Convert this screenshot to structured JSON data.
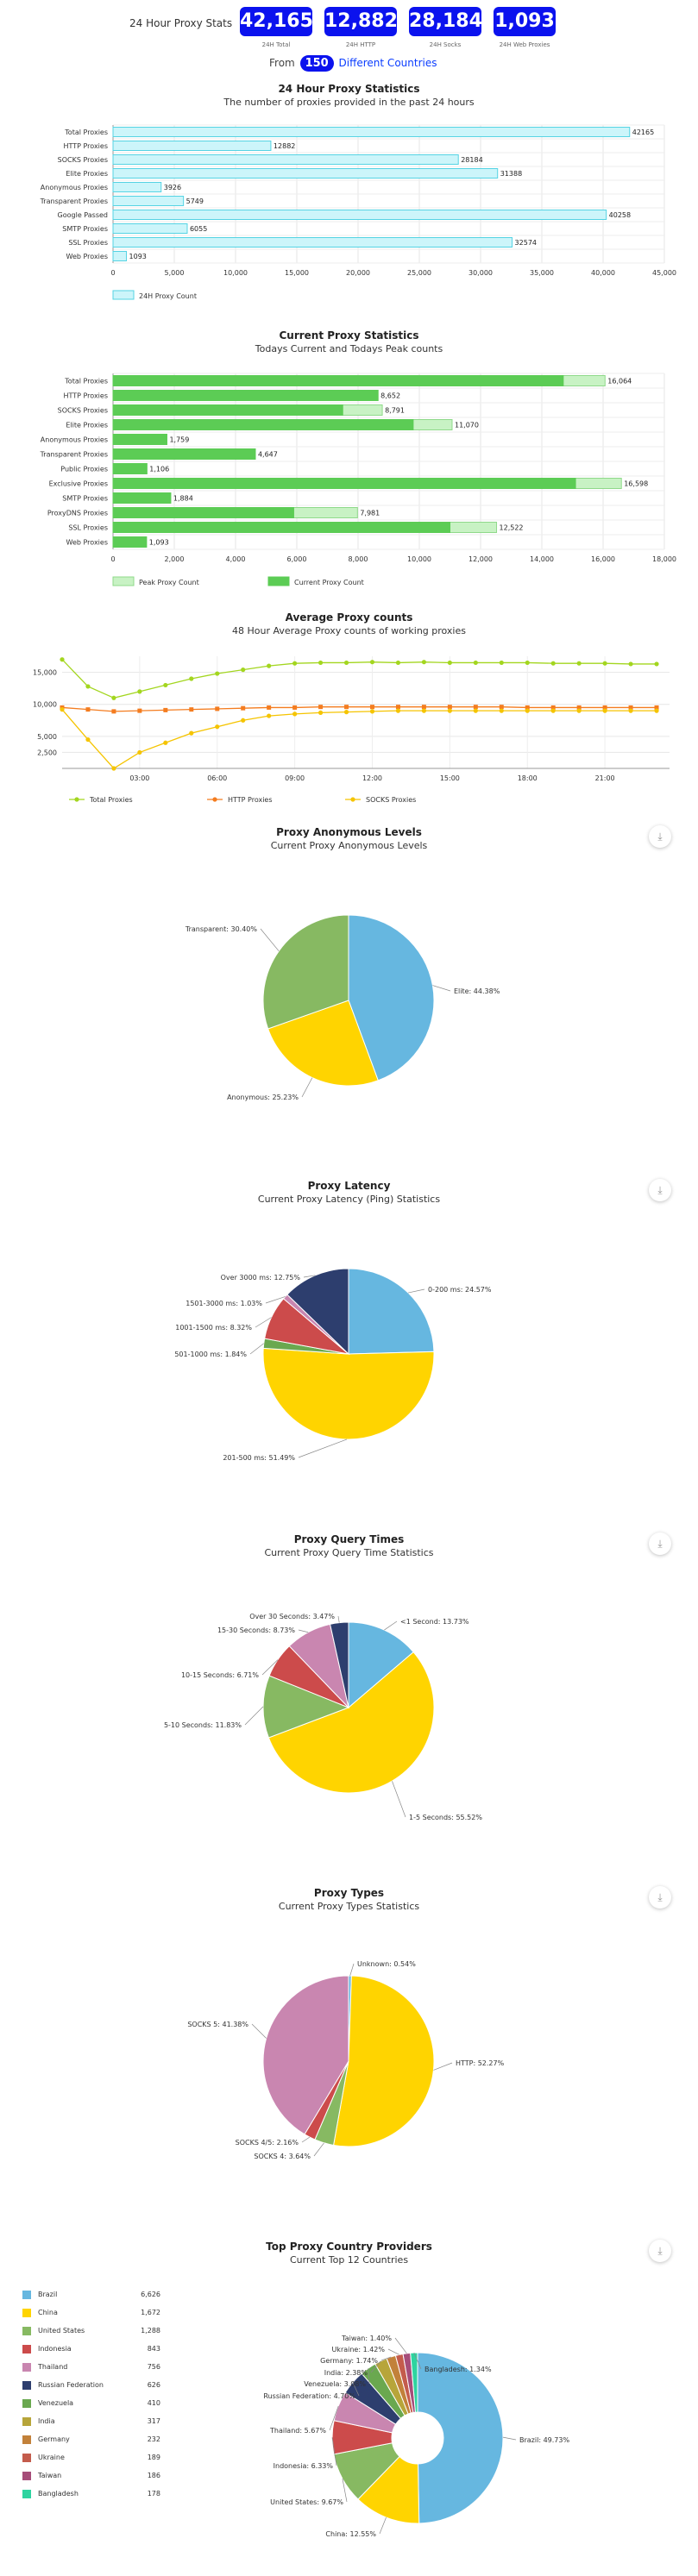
{
  "header": {
    "stats_label": "24 Hour Proxy Stats",
    "stats": [
      {
        "value": "42,165",
        "sub": "24H Total"
      },
      {
        "value": "12,882",
        "sub": "24H HTTP"
      },
      {
        "value": "28,184",
        "sub": "24H Socks"
      },
      {
        "value": "1,093",
        "sub": "24H Web Proxies"
      }
    ],
    "from_text": "From",
    "countries_count": "150",
    "countries_text": "Different Countries"
  },
  "charts": {
    "c1": {
      "title": "24 Hour Proxy Statistics",
      "subtitle": "The number of proxies provided in the past 24 hours"
    },
    "c2": {
      "title": "Current Proxy Statistics",
      "subtitle": "Todays Current and Todays Peak counts"
    },
    "c3": {
      "title": "Average Proxy counts",
      "subtitle": "48 Hour Average Proxy counts of working proxies"
    },
    "c4": {
      "title": "Proxy Anonymous Levels",
      "subtitle": "Current Proxy Anonymous Levels"
    },
    "c5": {
      "title": "Proxy Latency",
      "subtitle": "Current Proxy Latency (Ping) Statistics"
    },
    "c6": {
      "title": "Proxy Query Times",
      "subtitle": "Current Proxy Query Time Statistics"
    },
    "c7": {
      "title": "Proxy Types",
      "subtitle": "Current Proxy Types Statistics"
    },
    "c8": {
      "title": "Top Proxy Country Providers",
      "subtitle": "Current Top 12 Countries"
    }
  },
  "colors": {
    "accent": "#0b12ee",
    "cyan": "#ccf5fa",
    "cyan_border": "#55d3e3",
    "green": "#5ccc55",
    "green_light": "#c8f2c4"
  },
  "chart_data": [
    {
      "type": "bar",
      "orientation": "horizontal",
      "categories": [
        "Total Proxies",
        "HTTP Proxies",
        "SOCKS Proxies",
        "Elite Proxies",
        "Anonymous Proxies",
        "Transparent Proxies",
        "Google Passed",
        "SMTP Proxies",
        "SSL Proxies",
        "Web Proxies"
      ],
      "series": [
        {
          "name": "24H Proxy Count",
          "values": [
            42165,
            12882,
            28184,
            31388,
            3926,
            5749,
            40258,
            6055,
            32574,
            1093
          ]
        }
      ],
      "xlim": [
        0,
        45000
      ],
      "ticks": [
        "0",
        "5,000",
        "10,000",
        "15,000",
        "20,000",
        "25,000",
        "30,000",
        "35,000",
        "40,000",
        "45,000"
      ],
      "tick_values": [
        0,
        5000,
        10000,
        15000,
        20000,
        25000,
        30000,
        35000,
        40000,
        45000
      ],
      "labels": [
        "42165",
        "12882",
        "28184",
        "31388",
        "3926",
        "5749",
        "40258",
        "6055",
        "32574",
        "1093"
      ],
      "legend": "bottom-left"
    },
    {
      "type": "bar",
      "orientation": "horizontal",
      "categories": [
        "Total Proxies",
        "HTTP Proxies",
        "SOCKS Proxies",
        "Elite Proxies",
        "Anonymous Proxies",
        "Transparent Proxies",
        "Public Proxies",
        "Exclusive Proxies",
        "SMTP Proxies",
        "ProxyDNS Proxies",
        "SSL Proxies",
        "Web Proxies"
      ],
      "series": [
        {
          "name": "Peak Proxy Count",
          "values": [
            16064,
            8652,
            8791,
            11070,
            1759,
            4647,
            1106,
            16598,
            1884,
            7981,
            12522,
            1093
          ]
        },
        {
          "name": "Current Proxy Count",
          "values": [
            14700,
            8652,
            7500,
            9800,
            1759,
            4647,
            1106,
            15100,
            1884,
            5900,
            11000,
            1093
          ]
        }
      ],
      "labels": [
        "16,064",
        "8,652",
        "8,791",
        "11,070",
        "1,759",
        "4,647",
        "1,106",
        "16,598",
        "1,884",
        "7,981",
        "12,522",
        "1,093"
      ],
      "xlim": [
        0,
        18000
      ],
      "ticks": [
        "0",
        "2,000",
        "4,000",
        "6,000",
        "8,000",
        "10,000",
        "12,000",
        "14,000",
        "16,000",
        "18,000"
      ],
      "tick_values": [
        0,
        2000,
        4000,
        6000,
        8000,
        10000,
        12000,
        14000,
        16000,
        18000
      ],
      "legend": "bottom-left"
    },
    {
      "type": "line",
      "ylim": [
        0,
        17500
      ],
      "yticks": [
        "2,500",
        "5,000",
        "10,000",
        "15,000"
      ],
      "ytick_values": [
        2500,
        5000,
        10000,
        15000
      ],
      "xlim": [
        0,
        23.5
      ],
      "xticks": [
        "03:00",
        "06:00",
        "09:00",
        "12:00",
        "15:00",
        "18:00",
        "21:00"
      ],
      "xtick_values": [
        3,
        6,
        9,
        12,
        15,
        18,
        21
      ],
      "x": [
        0,
        1,
        2,
        3,
        4,
        5,
        6,
        7,
        8,
        9,
        10,
        11,
        12,
        13,
        14,
        15,
        16,
        17,
        18,
        19,
        20,
        21,
        22,
        23
      ],
      "series": [
        {
          "name": "Total Proxies",
          "values": [
            17000,
            12800,
            11000,
            12000,
            13000,
            14000,
            14800,
            15400,
            16000,
            16400,
            16500,
            16500,
            16600,
            16500,
            16600,
            16500,
            16500,
            16500,
            16500,
            16400,
            16400,
            16400,
            16300,
            16300
          ]
        },
        {
          "name": "HTTP Proxies",
          "values": [
            9500,
            9200,
            8900,
            9000,
            9100,
            9200,
            9300,
            9400,
            9500,
            9500,
            9600,
            9600,
            9600,
            9600,
            9600,
            9600,
            9600,
            9600,
            9500,
            9500,
            9500,
            9500,
            9500,
            9500
          ]
        },
        {
          "name": "SOCKS Proxies",
          "values": [
            9200,
            4500,
            0,
            2500,
            4000,
            5500,
            6500,
            7500,
            8200,
            8500,
            8700,
            8800,
            8900,
            9000,
            9000,
            9000,
            9000,
            9000,
            9000,
            9000,
            9000,
            9000,
            9000,
            9000
          ]
        }
      ],
      "legend": "bottom"
    },
    {
      "type": "pie",
      "slices": [
        {
          "label": "Elite: 44.38%",
          "value": 44.38
        },
        {
          "label": "Anonymous: 25.23%",
          "value": 25.23
        },
        {
          "label": "Transparent: 30.40%",
          "value": 30.4
        }
      ]
    },
    {
      "type": "pie",
      "slices": [
        {
          "label": "0-200 ms: 24.57%",
          "value": 24.57
        },
        {
          "label": "201-500 ms: 51.49%",
          "value": 51.49
        },
        {
          "label": "501-1000 ms: 1.84%",
          "value": 1.84
        },
        {
          "label": "1001-1500 ms: 8.32%",
          "value": 8.32
        },
        {
          "label": "1501-3000 ms: 1.03%",
          "value": 1.03
        },
        {
          "label": "Over 3000 ms: 12.75%",
          "value": 12.75
        }
      ]
    },
    {
      "type": "pie",
      "slices": [
        {
          "label": "<1 Second: 13.73%",
          "value": 13.73
        },
        {
          "label": "1-5 Seconds: 55.52%",
          "value": 55.52
        },
        {
          "label": "5-10 Seconds: 11.83%",
          "value": 11.83
        },
        {
          "label": "10-15 Seconds: 6.71%",
          "value": 6.71
        },
        {
          "label": "15-30 Seconds: 8.73%",
          "value": 8.73
        },
        {
          "label": "Over 30 Seconds: 3.47%",
          "value": 3.47
        }
      ]
    },
    {
      "type": "pie",
      "slices": [
        {
          "label": "Unknown: 0.54%",
          "value": 0.54
        },
        {
          "label": "HTTP: 52.27%",
          "value": 52.27
        },
        {
          "label": "SOCKS 4: 3.64%",
          "value": 3.64
        },
        {
          "label": "SOCKS 4/5: 2.16%",
          "value": 2.16
        },
        {
          "label": "SOCKS 5: 41.38%",
          "value": 41.38
        }
      ]
    },
    {
      "type": "pie",
      "donut": true,
      "slices": [
        {
          "label": "Brazil: 49.73%",
          "value": 49.73,
          "name": "Brazil",
          "count": "6,626"
        },
        {
          "label": "China: 12.55%",
          "value": 12.55,
          "name": "China",
          "count": "1,672"
        },
        {
          "label": "United States: 9.67%",
          "value": 9.67,
          "name": "United States",
          "count": "1,288"
        },
        {
          "label": "Indonesia: 6.33%",
          "value": 6.33,
          "name": "Indonesia",
          "count": "843"
        },
        {
          "label": "Thailand: 5.67%",
          "value": 5.67,
          "name": "Thailand",
          "count": "756"
        },
        {
          "label": "Russian Federation: 4.70%",
          "value": 4.7,
          "name": "Russian Federation",
          "count": "626"
        },
        {
          "label": "Venezuela: 3.08%",
          "value": 3.08,
          "name": "Venezuela",
          "count": "410"
        },
        {
          "label": "India: 2.38%",
          "value": 2.38,
          "name": "India",
          "count": "317"
        },
        {
          "label": "Germany: 1.74%",
          "value": 1.74,
          "name": "Germany",
          "count": "232"
        },
        {
          "label": "Ukraine: 1.42%",
          "value": 1.42,
          "name": "Ukraine",
          "count": "189"
        },
        {
          "label": "Taiwan: 1.40%",
          "value": 1.4,
          "name": "Taiwan",
          "count": "186"
        },
        {
          "label": "Bangladesh: 1.34%",
          "value": 1.34,
          "name": "Bangladesh",
          "count": "178"
        }
      ]
    }
  ]
}
